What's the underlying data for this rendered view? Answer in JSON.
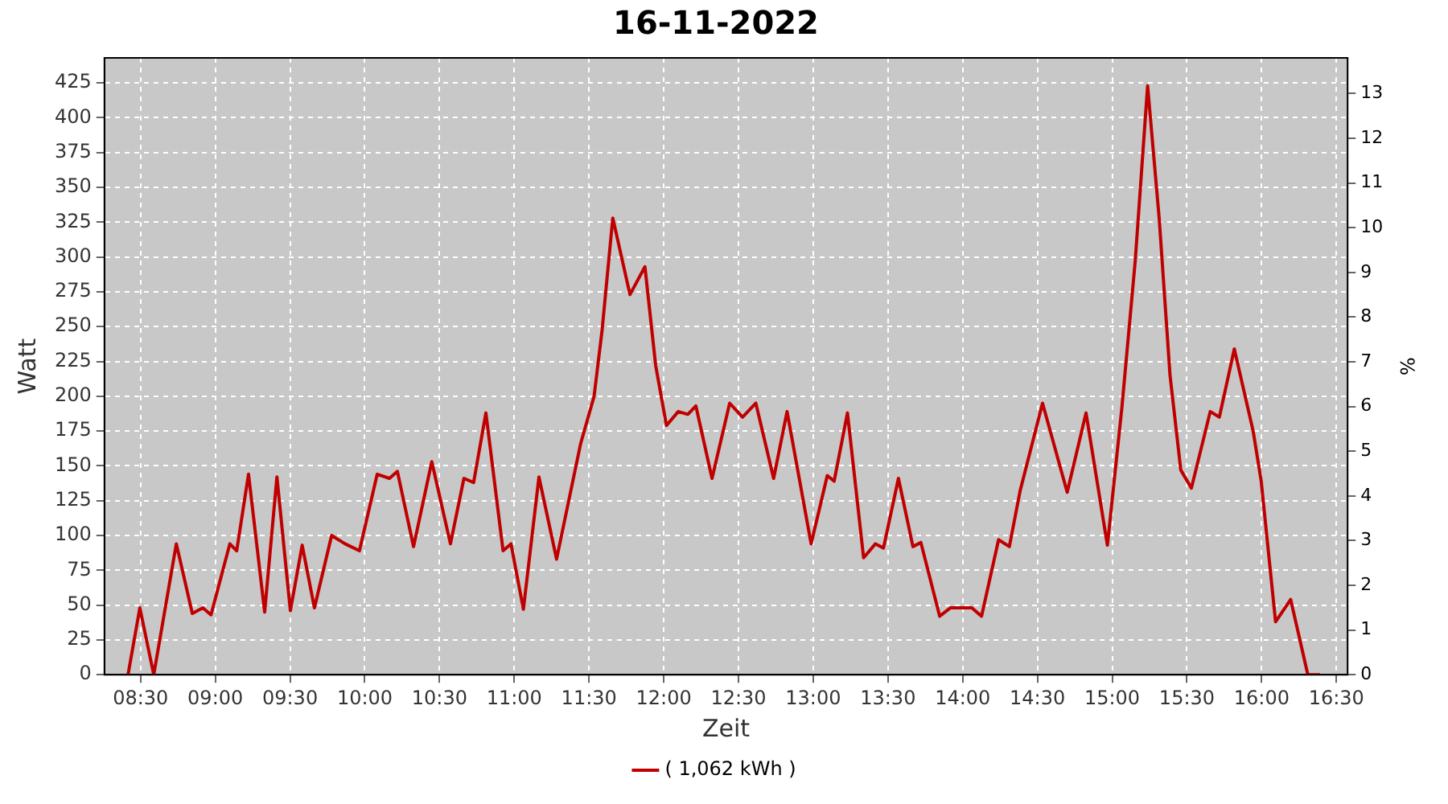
{
  "chart_data": {
    "type": "line",
    "title": "16-11-2022",
    "xlabel": "Zeit",
    "ylabel": "Watt",
    "y2label": "%",
    "x": [
      8.416,
      8.495,
      8.588,
      8.739,
      8.846,
      8.917,
      8.971,
      9.097,
      9.143,
      9.222,
      9.33,
      9.412,
      9.502,
      9.581,
      9.663,
      9.778,
      9.868,
      9.964,
      10.083,
      10.165,
      10.218,
      10.326,
      10.448,
      10.573,
      10.663,
      10.728,
      10.81,
      10.925,
      10.978,
      11.061,
      11.165,
      11.283,
      11.444,
      11.534,
      11.588,
      11.659,
      11.774,
      11.874,
      11.946,
      12.018,
      12.097,
      12.161,
      12.215,
      12.323,
      12.441,
      12.527,
      12.616,
      12.735,
      12.825,
      12.986,
      13.094,
      13.14,
      13.229,
      13.337,
      13.416,
      13.47,
      13.57,
      13.667,
      13.72,
      13.846,
      13.917,
      14.061,
      14.126,
      14.24,
      14.312,
      14.384,
      14.534,
      14.699,
      14.825,
      14.968,
      15.065,
      15.154,
      15.237,
      15.315,
      15.387,
      15.459,
      15.53,
      15.656,
      15.717,
      15.817,
      15.943,
      15.997,
      16.093,
      16.194,
      16.309,
      16.39
    ],
    "series": [
      {
        "name": "( 1,062 kWh )",
        "color": "#c00000",
        "values": [
          0,
          48,
          0,
          94,
          44,
          48,
          43,
          94,
          89,
          144,
          45,
          142,
          46,
          93,
          48,
          100,
          94,
          89,
          144,
          141,
          146,
          92,
          153,
          94,
          141,
          138,
          188,
          89,
          94,
          47,
          142,
          83,
          166,
          200,
          248,
          328,
          273,
          293,
          222,
          179,
          189,
          187,
          193,
          141,
          195,
          185,
          195,
          141,
          189,
          94,
          143,
          139,
          188,
          84,
          94,
          91,
          141,
          92,
          95,
          42,
          48,
          48,
          42,
          97,
          92,
          132,
          195,
          131,
          188,
          93,
          192,
          297,
          423,
          327,
          215,
          147,
          134,
          189,
          185,
          234,
          175,
          139,
          38,
          54,
          0,
          0
        ]
      }
    ],
    "xlim": [
      8.258,
      16.575
    ],
    "xticks": [
      {
        "value": 8.5,
        "label": "08:30"
      },
      {
        "value": 9,
        "label": "09:00"
      },
      {
        "value": 9.5,
        "label": "09:30"
      },
      {
        "value": 10,
        "label": "10:00"
      },
      {
        "value": 10.5,
        "label": "10:30"
      },
      {
        "value": 11,
        "label": "11:00"
      },
      {
        "value": 11.5,
        "label": "11:30"
      },
      {
        "value": 12,
        "label": "12:00"
      },
      {
        "value": 12.5,
        "label": "12:30"
      },
      {
        "value": 13,
        "label": "13:00"
      },
      {
        "value": 13.5,
        "label": "13:30"
      },
      {
        "value": 14,
        "label": "14:00"
      },
      {
        "value": 14.5,
        "label": "14:30"
      },
      {
        "value": 15,
        "label": "15:00"
      },
      {
        "value": 15.5,
        "label": "15:30"
      },
      {
        "value": 16,
        "label": "16:00"
      },
      {
        "value": 16.5,
        "label": "16:30"
      }
    ],
    "ylim": [
      0,
      443
    ],
    "yticks": [
      0,
      25,
      50,
      75,
      100,
      125,
      150,
      175,
      200,
      225,
      250,
      275,
      300,
      325,
      350,
      375,
      400,
      425
    ],
    "y2lim": [
      0,
      13.8
    ],
    "y2ticks": [
      0,
      1,
      2,
      3,
      4,
      5,
      6,
      7,
      8,
      9,
      10,
      11,
      12,
      13
    ],
    "grid": true,
    "legend": "bottom",
    "marker": "none",
    "line_style": "solid"
  }
}
